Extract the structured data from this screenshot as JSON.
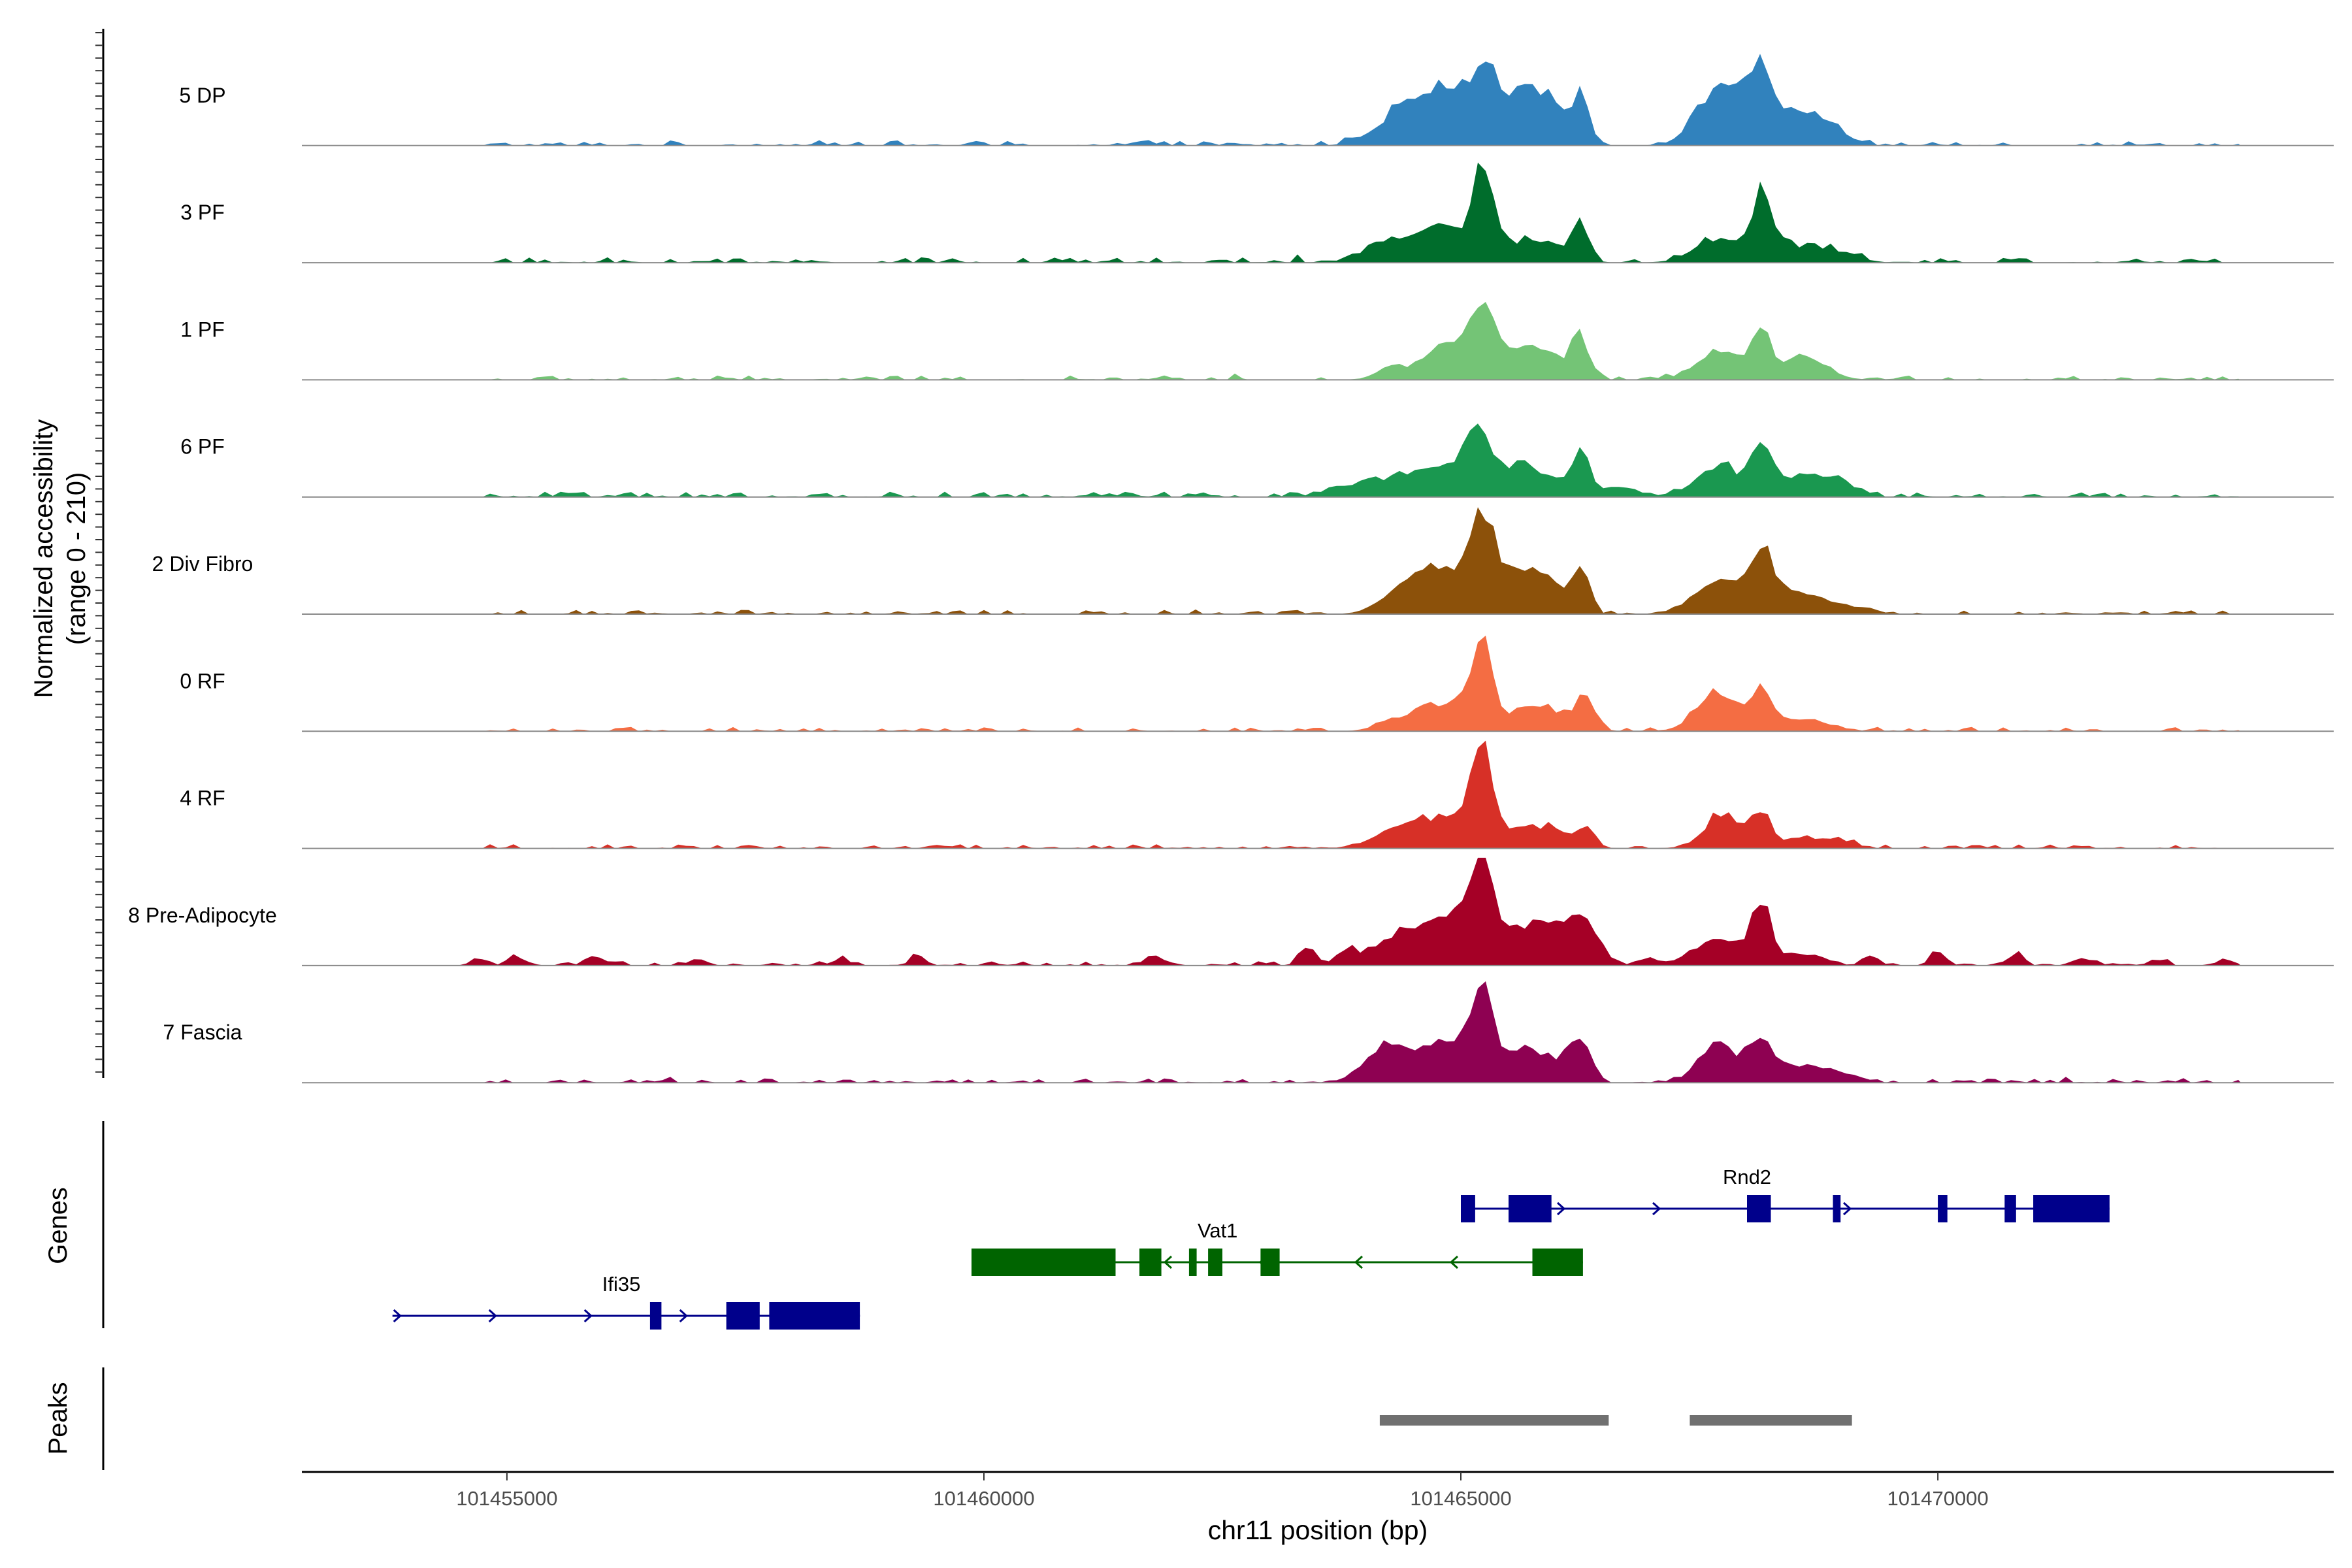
{
  "chart_data": {
    "type": "coverage-tracks",
    "yaxis_title_lines": [
      "Normalized accessibility",
      "(range 0 - 210)"
    ],
    "y_range": [
      0,
      210
    ],
    "x_axis": {
      "title": "chr11 position (bp)",
      "range": [
        101452850,
        101474150
      ],
      "ticks": [
        101455000,
        101460000,
        101465000,
        101470000
      ],
      "tick_labels": [
        "101455000",
        "101460000",
        "101465000",
        "101470000"
      ]
    },
    "tracks": [
      {
        "name": "5 DP",
        "color": "#3182bd",
        "noise": 0.05,
        "noise_start": 101454800,
        "noise_end": 101473300,
        "peaks": [
          [
            101464300,
            250,
            0.2
          ],
          [
            101464800,
            300,
            0.48
          ],
          [
            101465250,
            140,
            0.58
          ],
          [
            101465650,
            200,
            0.48
          ],
          [
            101465950,
            130,
            0.26
          ],
          [
            101466250,
            90,
            0.5
          ],
          [
            101467600,
            200,
            0.28
          ],
          [
            101468000,
            260,
            0.52
          ],
          [
            101468150,
            90,
            0.25
          ],
          [
            101468600,
            230,
            0.26
          ],
          [
            101468900,
            150,
            0.08
          ]
        ]
      },
      {
        "name": "3 PF",
        "color": "#006d2c",
        "noise": 0.05,
        "noise_start": 101454800,
        "noise_end": 101473300,
        "peaks": [
          [
            101464200,
            250,
            0.14
          ],
          [
            101464800,
            300,
            0.32
          ],
          [
            101465230,
            110,
            0.75
          ],
          [
            101465700,
            220,
            0.2
          ],
          [
            101466000,
            110,
            0.06
          ],
          [
            101466250,
            90,
            0.38
          ],
          [
            101467700,
            250,
            0.2
          ],
          [
            101468150,
            90,
            0.5
          ],
          [
            101468300,
            200,
            0.15
          ],
          [
            101468800,
            250,
            0.14
          ]
        ]
      },
      {
        "name": "1 PF",
        "color": "#74c476",
        "noise": 0.04,
        "noise_start": 101454800,
        "noise_end": 101473300,
        "peaks": [
          [
            101464250,
            150,
            0.1
          ],
          [
            101464900,
            260,
            0.35
          ],
          [
            101465250,
            130,
            0.56
          ],
          [
            101465650,
            180,
            0.26
          ],
          [
            101465950,
            150,
            0.16
          ],
          [
            101466250,
            90,
            0.4
          ],
          [
            101467700,
            230,
            0.24
          ],
          [
            101468150,
            100,
            0.43
          ],
          [
            101468600,
            230,
            0.2
          ]
        ]
      },
      {
        "name": "6 PF",
        "color": "#1a9850",
        "noise": 0.05,
        "noise_start": 101454800,
        "noise_end": 101473300,
        "peaks": [
          [
            101464000,
            300,
            0.12
          ],
          [
            101464800,
            320,
            0.3
          ],
          [
            101465200,
            120,
            0.5
          ],
          [
            101465650,
            200,
            0.3
          ],
          [
            101466000,
            120,
            0.08
          ],
          [
            101466250,
            100,
            0.42
          ],
          [
            101466700,
            150,
            0.1
          ],
          [
            101467700,
            230,
            0.28
          ],
          [
            101468150,
            100,
            0.48
          ],
          [
            101468600,
            250,
            0.22
          ],
          [
            101469000,
            150,
            0.08
          ]
        ]
      },
      {
        "name": "2 Div Fibro",
        "color": "#8c510a",
        "noise": 0.04,
        "noise_start": 101454800,
        "noise_end": 101473300,
        "peaks": [
          [
            101464300,
            200,
            0.1
          ],
          [
            101464800,
            320,
            0.42
          ],
          [
            101465230,
            130,
            0.72
          ],
          [
            101465650,
            220,
            0.38
          ],
          [
            101465950,
            120,
            0.2
          ],
          [
            101466250,
            90,
            0.48
          ],
          [
            101467700,
            250,
            0.3
          ],
          [
            101468150,
            130,
            0.56
          ],
          [
            101468600,
            240,
            0.2
          ],
          [
            101469200,
            150,
            0.06
          ]
        ]
      },
      {
        "name": "0 RF",
        "color": "#f46d43",
        "noise": 0.04,
        "noise_start": 101454800,
        "noise_end": 101473300,
        "peaks": [
          [
            101464300,
            200,
            0.06
          ],
          [
            101464800,
            300,
            0.25
          ],
          [
            101465220,
            110,
            0.74
          ],
          [
            101465700,
            220,
            0.2
          ],
          [
            101466000,
            130,
            0.1
          ],
          [
            101466300,
            100,
            0.35
          ],
          [
            101467700,
            220,
            0.34
          ],
          [
            101468150,
            110,
            0.33
          ],
          [
            101468600,
            250,
            0.12
          ]
        ]
      },
      {
        "name": "4 RF",
        "color": "#d73027",
        "noise": 0.04,
        "noise_start": 101454800,
        "noise_end": 101473300,
        "peaks": [
          [
            101464300,
            250,
            0.12
          ],
          [
            101464850,
            320,
            0.28
          ],
          [
            101465220,
            110,
            0.84
          ],
          [
            101465700,
            220,
            0.18
          ],
          [
            101466000,
            120,
            0.1
          ],
          [
            101466300,
            100,
            0.18
          ],
          [
            101467750,
            200,
            0.3
          ],
          [
            101468150,
            100,
            0.3
          ],
          [
            101468600,
            220,
            0.1
          ],
          [
            101469000,
            150,
            0.05
          ]
        ]
      },
      {
        "name": "8 Pre-Adipocyte",
        "color": "#a50026",
        "noise": 0.04,
        "noise_start": 101454800,
        "noise_end": 101473300,
        "blips": [
          [
            101454700,
            0.07
          ],
          [
            101455100,
            0.1
          ],
          [
            101455900,
            0.1
          ],
          [
            101457000,
            0.06
          ],
          [
            101458500,
            0.06
          ],
          [
            101459300,
            0.08
          ],
          [
            101461800,
            0.08
          ],
          [
            101463400,
            0.2
          ],
          [
            101463800,
            0.15
          ],
          [
            101466900,
            0.07
          ],
          [
            101469300,
            0.08
          ],
          [
            101470000,
            0.1
          ],
          [
            101470800,
            0.1
          ],
          [
            101471500,
            0.07
          ],
          [
            101472300,
            0.06
          ],
          [
            101473000,
            0.05
          ]
        ],
        "peaks": [
          [
            101464300,
            260,
            0.22
          ],
          [
            101464900,
            320,
            0.4
          ],
          [
            101465220,
            120,
            0.85
          ],
          [
            101465700,
            220,
            0.3
          ],
          [
            101466000,
            200,
            0.26
          ],
          [
            101466300,
            150,
            0.36
          ],
          [
            101467700,
            250,
            0.26
          ],
          [
            101468150,
            100,
            0.58
          ],
          [
            101468600,
            200,
            0.1
          ]
        ]
      },
      {
        "name": "7 Fascia",
        "color": "#8e0152",
        "noise": 0.04,
        "noise_start": 101454800,
        "noise_end": 101473300,
        "peaks": [
          [
            101464200,
            220,
            0.28
          ],
          [
            101464800,
            320,
            0.34
          ],
          [
            101465220,
            120,
            0.72
          ],
          [
            101465650,
            200,
            0.3
          ],
          [
            101466000,
            150,
            0.14
          ],
          [
            101466250,
            100,
            0.4
          ],
          [
            101467700,
            200,
            0.38
          ],
          [
            101468150,
            120,
            0.36
          ],
          [
            101468600,
            220,
            0.16
          ],
          [
            101469000,
            150,
            0.06
          ]
        ]
      }
    ],
    "genes_track_label": "Genes",
    "genes": [
      {
        "name": "Rnd2",
        "strand": "+",
        "color": "#00008b",
        "row": 0,
        "start": 101465000,
        "end": 101471800,
        "label_pos": 101468000,
        "exons": [
          [
            101465000,
            101465150
          ],
          [
            101465500,
            101465950
          ],
          [
            101468000,
            101468250
          ],
          [
            101468900,
            101468980
          ],
          [
            101470000,
            101470100
          ],
          [
            101470700,
            101470820
          ],
          [
            101471000,
            101471800
          ]
        ]
      },
      {
        "name": "Vat1",
        "strand": "-",
        "color": "#006400",
        "row": 1,
        "start": 101459870,
        "end": 101466280,
        "label_pos": 101462450,
        "exons": [
          [
            101459870,
            101461380
          ],
          [
            101461630,
            101461860
          ],
          [
            101462150,
            101462230
          ],
          [
            101462350,
            101462500
          ],
          [
            101462900,
            101463100
          ],
          [
            101465750,
            101466280
          ]
        ]
      },
      {
        "name": "Ifi35",
        "strand": "+",
        "color": "#00008b",
        "row": 2,
        "start": 101453800,
        "end": 101458700,
        "label_pos": 101456200,
        "exons": [
          [
            101456500,
            101456620
          ],
          [
            101457300,
            101457650
          ],
          [
            101457750,
            101458700
          ]
        ]
      }
    ],
    "peaks_track_label": "Peaks",
    "peak_regions": [
      [
        101464150,
        101466550
      ],
      [
        101467400,
        101469100
      ]
    ],
    "peak_color": "#707070"
  }
}
